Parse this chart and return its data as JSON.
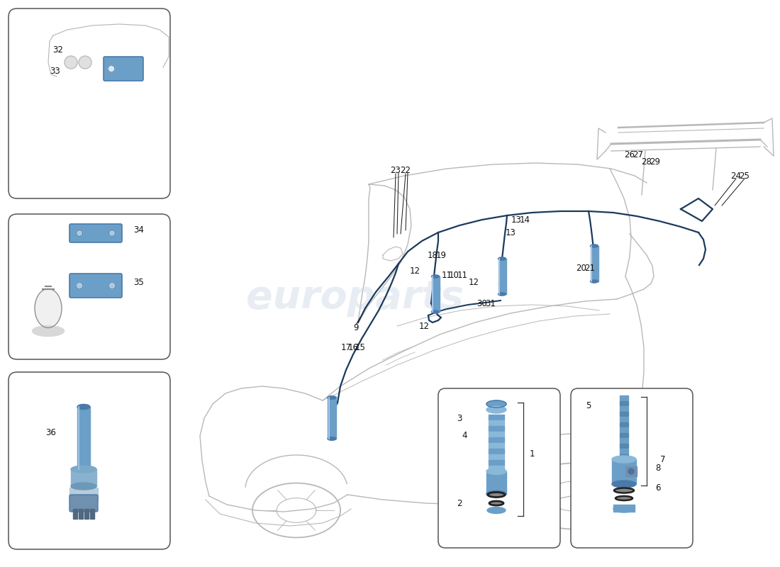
{
  "bg_color": "#ffffff",
  "car_lc": "#b8b8b8",
  "car_lw": 1.0,
  "hl_color": "#1a3a5c",
  "hl_lw": 1.6,
  "blue_part": "#6b9fc8",
  "blue_part_dark": "#4a7aaa",
  "blue_part_light": "#8ab8d8",
  "label_color": "#111111",
  "box_border": "#555555",
  "watermark_color": "#ccd8e8",
  "watermark_alpha": 0.45,
  "label_fontsize": 8.5,
  "leader_lw": 0.75,
  "leader_color": "#222222"
}
